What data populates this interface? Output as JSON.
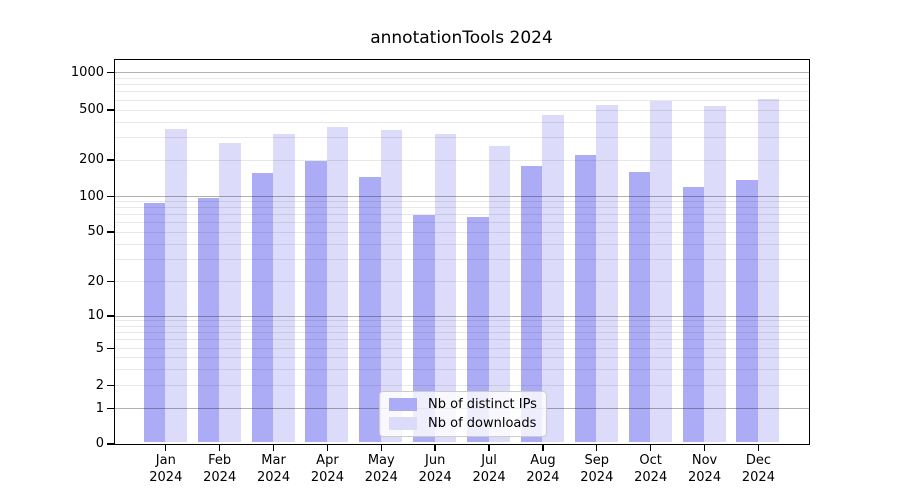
{
  "chart_data": {
    "type": "bar",
    "title": "annotationTools 2024",
    "categories": [
      "Jan 2024",
      "Feb 2024",
      "Mar 2024",
      "Apr 2024",
      "May 2024",
      "Jun 2024",
      "Jul 2024",
      "Aug 2024",
      "Sep 2024",
      "Oct 2024",
      "Nov 2024",
      "Dec 2024"
    ],
    "x_tick_labels": [
      {
        "month": "Jan",
        "year": "2024"
      },
      {
        "month": "Feb",
        "year": "2024"
      },
      {
        "month": "Mar",
        "year": "2024"
      },
      {
        "month": "Apr",
        "year": "2024"
      },
      {
        "month": "May",
        "year": "2024"
      },
      {
        "month": "Jun",
        "year": "2024"
      },
      {
        "month": "Jul",
        "year": "2024"
      },
      {
        "month": "Aug",
        "year": "2024"
      },
      {
        "month": "Sep",
        "year": "2024"
      },
      {
        "month": "Oct",
        "year": "2024"
      },
      {
        "month": "Nov",
        "year": "2024"
      },
      {
        "month": "Dec",
        "year": "2024"
      }
    ],
    "series": [
      {
        "name": "Nb of distinct IPs",
        "color": "#acacf6",
        "values": [
          87,
          96,
          155,
          193,
          143,
          69,
          67,
          178,
          218,
          157,
          119,
          135
        ]
      },
      {
        "name": "Nb of downloads",
        "color": "#dcdcfa",
        "values": [
          350,
          270,
          317,
          362,
          341,
          318,
          258,
          448,
          548,
          590,
          530,
          610
        ]
      }
    ],
    "y_axis": {
      "scale": "symlog",
      "tick_values": [
        0,
        1,
        2,
        5,
        10,
        20,
        50,
        100,
        200,
        500,
        1000
      ],
      "tick_labels": [
        "0",
        "1",
        "2",
        "5",
        "10",
        "20",
        "50",
        "100",
        "200",
        "500",
        "1000"
      ],
      "ylim": [
        0,
        1300
      ],
      "grid": true
    },
    "legend": {
      "position": "lower-center"
    }
  }
}
